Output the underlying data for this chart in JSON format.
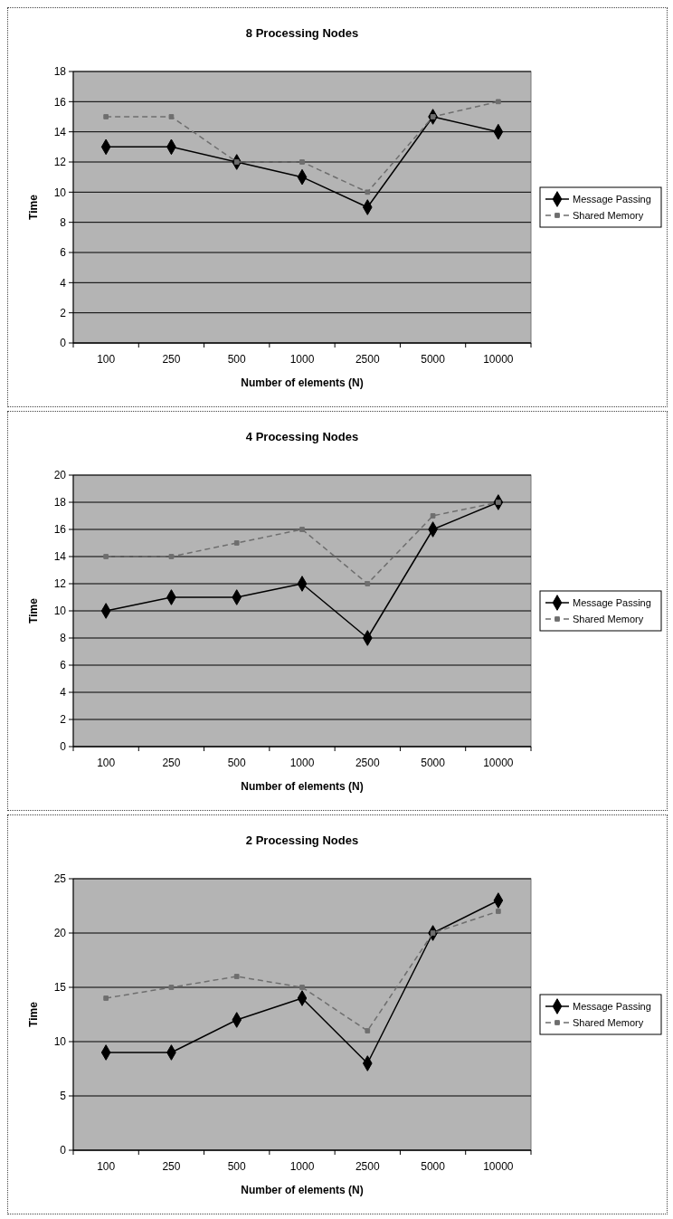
{
  "chart_data": [
    {
      "type": "line",
      "title": "8 Processing Nodes",
      "xlabel": "Number of elements (N)",
      "ylabel": "Time",
      "categories": [
        "100",
        "250",
        "500",
        "1000",
        "2500",
        "5000",
        "10000"
      ],
      "ylim": [
        0,
        18
      ],
      "yticks": [
        0,
        2,
        4,
        6,
        8,
        10,
        12,
        14,
        16,
        18
      ],
      "grid": "y",
      "legend": "right",
      "series": [
        {
          "name": "Message Passing",
          "color": "#000000",
          "marker": "diamond",
          "line_style": "solid",
          "values": [
            13,
            13,
            12,
            11,
            9,
            15,
            14
          ]
        },
        {
          "name": "Shared Memory",
          "color": "#6e6e6e",
          "marker": "square",
          "line_style": "dashed",
          "values": [
            15,
            15,
            12,
            12,
            10,
            15,
            16
          ]
        }
      ]
    },
    {
      "type": "line",
      "title": "4 Processing Nodes",
      "xlabel": "Number of elements (N)",
      "ylabel": "Time",
      "categories": [
        "100",
        "250",
        "500",
        "1000",
        "2500",
        "5000",
        "10000"
      ],
      "ylim": [
        0,
        20
      ],
      "yticks": [
        0,
        2,
        4,
        6,
        8,
        10,
        12,
        14,
        16,
        18,
        20
      ],
      "grid": "y",
      "legend": "right",
      "series": [
        {
          "name": "Message Passing",
          "color": "#000000",
          "marker": "diamond",
          "line_style": "solid",
          "values": [
            10,
            11,
            11,
            12,
            8,
            16,
            18
          ]
        },
        {
          "name": "Shared Memory",
          "color": "#6e6e6e",
          "marker": "square",
          "line_style": "dashed",
          "values": [
            14,
            14,
            15,
            16,
            12,
            17,
            18
          ]
        }
      ]
    },
    {
      "type": "line",
      "title": "2 Processing Nodes",
      "xlabel": "Number of elements (N)",
      "ylabel": "Time",
      "categories": [
        "100",
        "250",
        "500",
        "1000",
        "2500",
        "5000",
        "10000"
      ],
      "ylim": [
        0,
        25
      ],
      "yticks": [
        0,
        5,
        10,
        15,
        20,
        25
      ],
      "grid": "y",
      "legend": "right",
      "series": [
        {
          "name": "Message Passing",
          "color": "#000000",
          "marker": "diamond",
          "line_style": "solid",
          "values": [
            9,
            9,
            12,
            14,
            8,
            20,
            23
          ]
        },
        {
          "name": "Shared Memory",
          "color": "#6e6e6e",
          "marker": "square",
          "line_style": "dashed",
          "values": [
            14,
            15,
            16,
            15,
            11,
            20,
            22
          ]
        }
      ]
    }
  ]
}
